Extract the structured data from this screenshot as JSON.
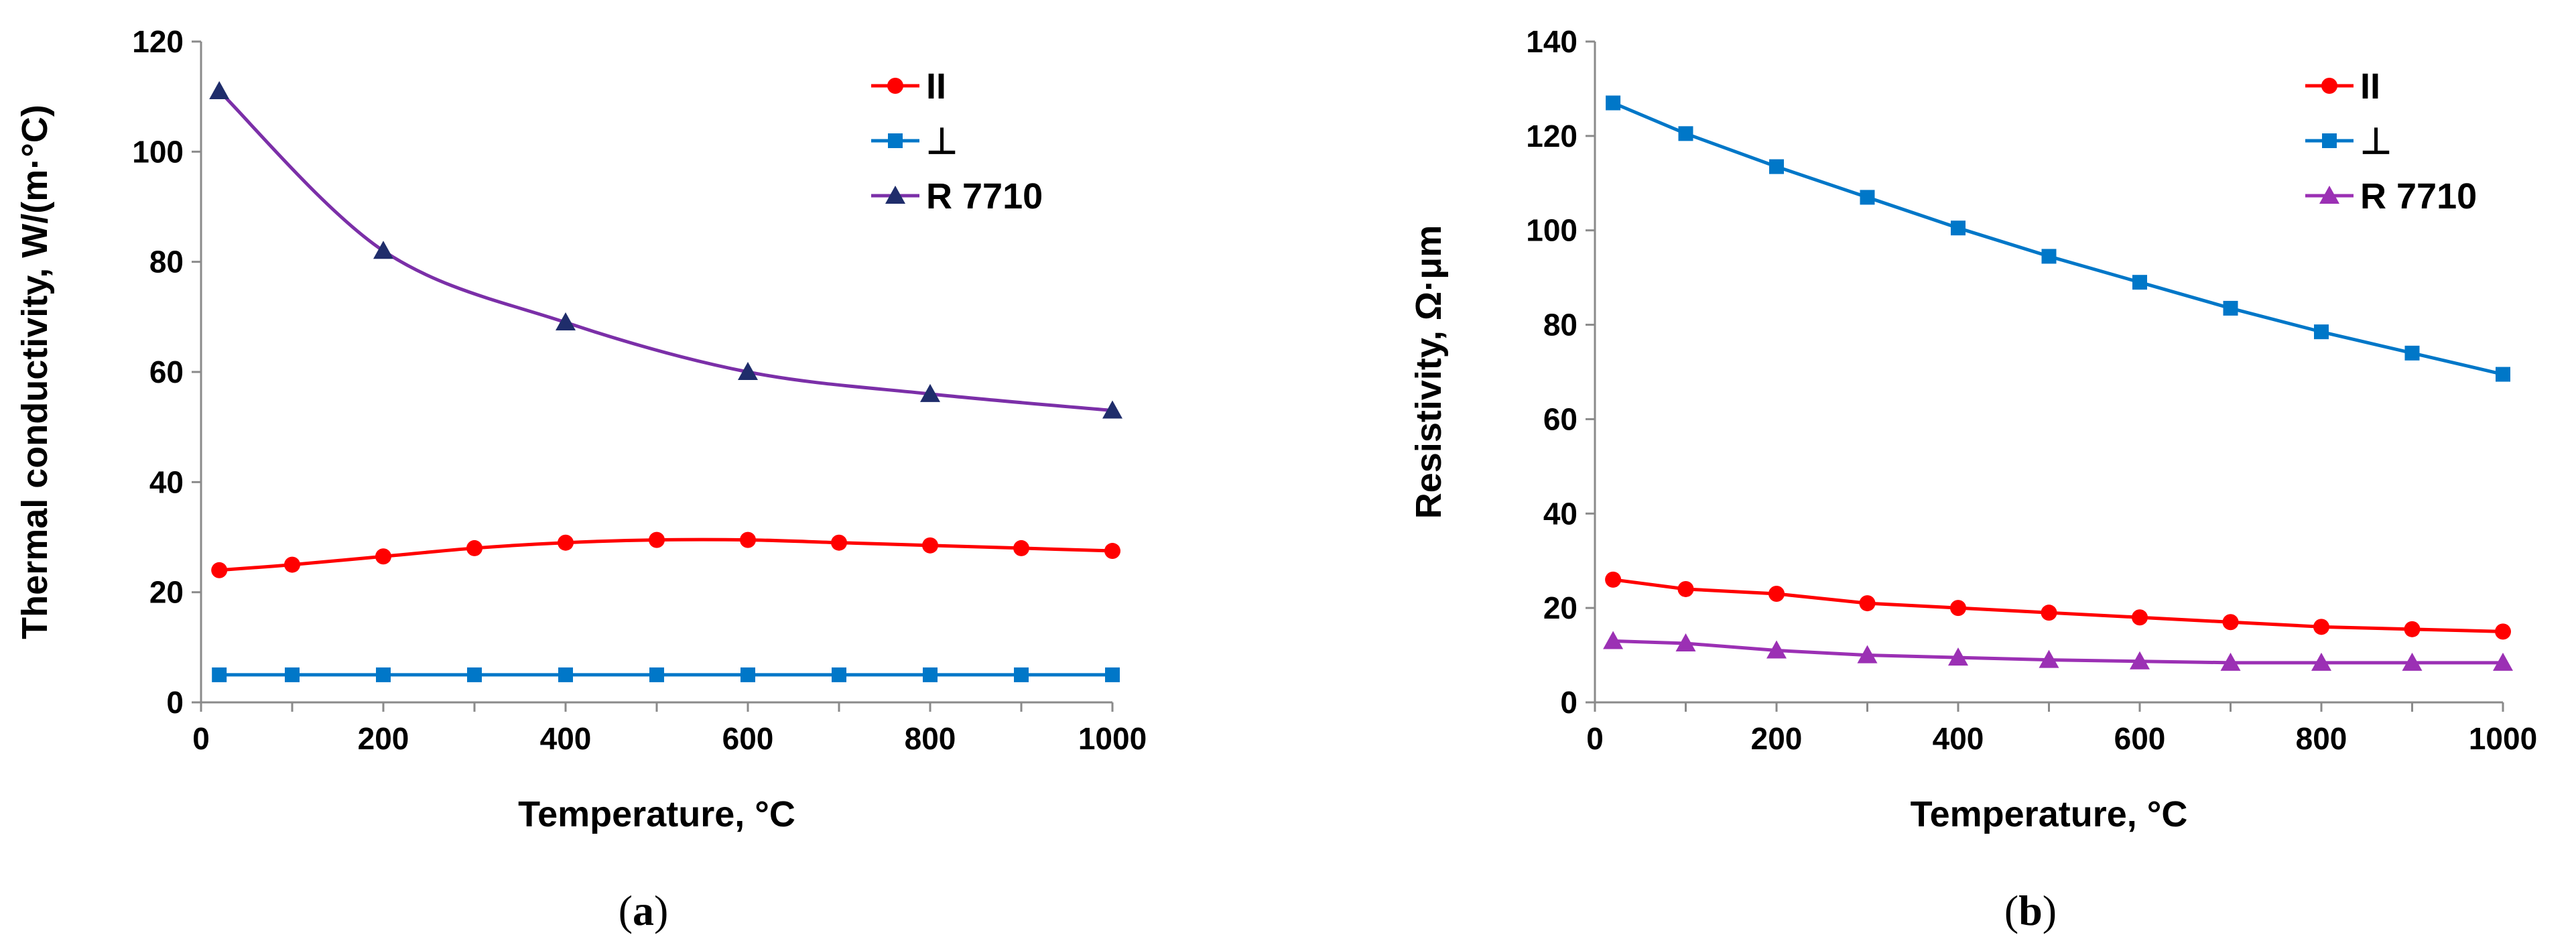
{
  "chart_data": [
    {
      "type": "line",
      "panel_label": "a",
      "xlabel": "Temperature, °C",
      "ylabel": "Thermal conductivity, W/(m·°C)",
      "xlim": [
        0,
        1000
      ],
      "ylim": [
        0,
        120
      ],
      "xticks": [
        0,
        200,
        400,
        600,
        800,
        1000
      ],
      "yticks": [
        0,
        20,
        40,
        60,
        80,
        100,
        120
      ],
      "grid": false,
      "legend_position": "top-right",
      "series": [
        {
          "name": "II",
          "color": "#ff0000",
          "marker": "circle",
          "smooth": true,
          "x": [
            20,
            100,
            200,
            300,
            400,
            500,
            600,
            700,
            800,
            900,
            1000
          ],
          "y": [
            24,
            25,
            26.5,
            28,
            29,
            29.5,
            29.5,
            29,
            28.5,
            28,
            27.5
          ]
        },
        {
          "name": "⊥",
          "color": "#0077c8",
          "marker": "square",
          "smooth": false,
          "x": [
            20,
            100,
            200,
            300,
            400,
            500,
            600,
            700,
            800,
            900,
            1000
          ],
          "y": [
            5,
            5,
            5,
            5,
            5,
            5,
            5,
            5,
            5,
            5,
            5
          ]
        },
        {
          "name": "R 7710",
          "color": "#7b2fa8",
          "marker": "triangle",
          "marker_color": "#1f2d6b",
          "smooth": true,
          "x": [
            20,
            200,
            400,
            600,
            800,
            1000
          ],
          "y": [
            111,
            82,
            69,
            60,
            56,
            53
          ]
        }
      ]
    },
    {
      "type": "line",
      "panel_label": "b",
      "xlabel": "Temperature, °C",
      "ylabel": "Resistivity, Ω·μm",
      "xlim": [
        0,
        1000
      ],
      "ylim": [
        0,
        140
      ],
      "xticks": [
        0,
        200,
        400,
        600,
        800,
        1000
      ],
      "yticks": [
        0,
        20,
        40,
        60,
        80,
        100,
        120,
        140
      ],
      "grid": false,
      "legend_position": "top-right",
      "series": [
        {
          "name": "II",
          "color": "#ff0000",
          "marker": "circle",
          "smooth": false,
          "x": [
            20,
            100,
            200,
            300,
            400,
            500,
            600,
            700,
            800,
            900,
            1000
          ],
          "y": [
            26,
            24,
            23,
            21,
            20,
            19,
            18,
            17,
            16,
            15.5,
            15
          ]
        },
        {
          "name": "⊥",
          "color": "#0077c8",
          "marker": "square",
          "smooth": false,
          "x": [
            20,
            100,
            200,
            300,
            400,
            500,
            600,
            700,
            800,
            900,
            1000
          ],
          "y": [
            127,
            120.5,
            113.5,
            107,
            100.5,
            94.5,
            89,
            83.5,
            78.5,
            74,
            69.5
          ]
        },
        {
          "name": "R 7710",
          "color": "#9b30b4",
          "marker": "triangle",
          "smooth": false,
          "x": [
            20,
            100,
            200,
            300,
            400,
            500,
            600,
            700,
            800,
            900,
            1000
          ],
          "y": [
            13,
            12.5,
            11,
            10,
            9.5,
            9,
            8.7,
            8.4,
            8.4,
            8.4,
            8.4
          ]
        }
      ]
    }
  ]
}
